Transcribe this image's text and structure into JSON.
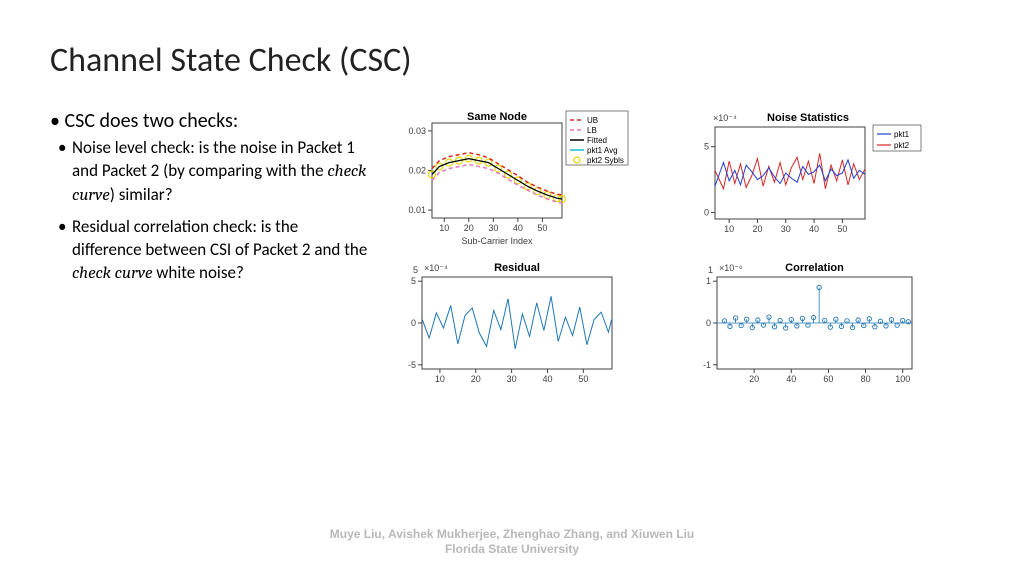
{
  "title": "Channel State Check (CSC)",
  "bullet_main": "CSC does two checks:",
  "bullet_sub1_a": "Noise level check: is the noise in Packet 1 and Packet 2 (by comparing with the ",
  "bullet_sub1_b": "check curve",
  "bullet_sub1_c": ") similar?",
  "bullet_sub2_a": "Residual correlation check: is the difference between CSI of Packet 2 and the ",
  "bullet_sub2_b": "check curve",
  "bullet_sub2_c": " white noise?",
  "footer_line1": "Muye Liu, Avishek Mukherjee, Zhenghao Zhang, and Xiuwen Liu",
  "footer_line2": "Florida State University",
  "colors": {
    "axis": "#404040",
    "ub": "#d62728",
    "lb": "#e377c2",
    "fitted": "#000000",
    "pkt1avg": "#17becf",
    "pkt2sybls": "#e6d800",
    "pkt1": "#1f3fd4",
    "pkt2": "#d62728",
    "residual": "#1f77b4",
    "corr": "#1f77b4"
  },
  "chart1": {
    "title": "Same Node",
    "xlabel": "Sub-Carrier Index",
    "xticks": [
      10,
      20,
      30,
      40,
      50
    ],
    "yticks_labels": [
      "0.01",
      "0.02",
      "0.03"
    ],
    "yticks_vals": [
      0.01,
      0.02,
      0.03
    ],
    "xlim": [
      5,
      58
    ],
    "ylim": [
      0.008,
      0.032
    ],
    "curve_x": [
      5,
      8,
      12,
      16,
      20,
      24,
      28,
      32,
      36,
      40,
      44,
      48,
      52,
      56,
      58
    ],
    "fitted": [
      0.019,
      0.021,
      0.022,
      0.0225,
      0.023,
      0.0225,
      0.022,
      0.0205,
      0.019,
      0.0175,
      0.016,
      0.0148,
      0.0138,
      0.013,
      0.0128
    ],
    "ub": [
      0.0205,
      0.0225,
      0.0235,
      0.024,
      0.0245,
      0.024,
      0.0232,
      0.0217,
      0.0202,
      0.0187,
      0.017,
      0.0158,
      0.0148,
      0.014,
      0.0138
    ],
    "lb": [
      0.0175,
      0.0195,
      0.0205,
      0.021,
      0.0215,
      0.021,
      0.0205,
      0.0193,
      0.0178,
      0.0163,
      0.015,
      0.0138,
      0.0128,
      0.012,
      0.0118
    ],
    "legend": [
      "UB",
      "LB",
      "Fitted",
      "pkt1 Avg",
      "pkt2 Sybls"
    ]
  },
  "chart2": {
    "title": "Noise Statistics",
    "exp": "×10⁻⁴",
    "xticks": [
      10,
      20,
      30,
      40,
      50
    ],
    "yticks": [
      0,
      5
    ],
    "xlim": [
      5,
      58
    ],
    "ylim": [
      -0.5,
      6.5
    ],
    "x": [
      5,
      8,
      10,
      12,
      14,
      16,
      18,
      20,
      22,
      24,
      26,
      28,
      30,
      32,
      34,
      36,
      38,
      40,
      42,
      44,
      46,
      48,
      50,
      52,
      54,
      56,
      58
    ],
    "pkt1": [
      2.0,
      3.8,
      2.4,
      3.2,
      2.1,
      3.6,
      3.1,
      2.5,
      2.8,
      3.4,
      2.7,
      2.2,
      3.0,
      2.6,
      2.3,
      3.5,
      2.9,
      3.1,
      3.6,
      2.4,
      3.3,
      2.8,
      3.0,
      4.0,
      2.6,
      3.2,
      2.9
    ],
    "pkt2": [
      3.2,
      1.8,
      3.9,
      2.2,
      3.7,
      1.9,
      2.8,
      4.1,
      2.0,
      3.5,
      2.3,
      3.8,
      2.1,
      3.4,
      4.2,
      2.5,
      3.9,
      2.2,
      4.5,
      1.8,
      3.6,
      2.4,
      4.0,
      2.1,
      3.7,
      2.5,
      3.3
    ],
    "legend": [
      "pkt1",
      "pkt2"
    ]
  },
  "chart3": {
    "title": "Residual",
    "exp": "×10⁻⁴",
    "xticks": [
      10,
      20,
      30,
      40,
      50
    ],
    "yticks": [
      -5,
      0,
      5
    ],
    "xlim": [
      5,
      58
    ],
    "ylim": [
      -5.5,
      5.5
    ],
    "x": [
      5,
      7,
      9,
      11,
      13,
      15,
      17,
      19,
      21,
      23,
      25,
      27,
      29,
      31,
      33,
      35,
      37,
      39,
      41,
      43,
      45,
      47,
      49,
      51,
      53,
      55,
      57,
      58
    ],
    "y": [
      0.5,
      -1.8,
      1.2,
      -0.6,
      2.1,
      -2.5,
      0.9,
      1.8,
      -1.2,
      -2.8,
      1.5,
      -0.8,
      2.9,
      -3.1,
      1.1,
      -1.6,
      2.4,
      -0.9,
      3.2,
      -2.2,
      0.7,
      -1.5,
      1.9,
      -2.6,
      0.4,
      1.3,
      -1.1,
      0.6
    ]
  },
  "chart4": {
    "title": "Correlation",
    "exp": "×10⁻⁶",
    "xticks": [
      20,
      40,
      60,
      80,
      100
    ],
    "yticks": [
      -1,
      0,
      1
    ],
    "xlim": [
      0,
      105
    ],
    "ylim": [
      -1.1,
      1.1
    ],
    "stem_x": [
      4,
      7,
      10,
      13,
      16,
      19,
      22,
      25,
      28,
      31,
      34,
      37,
      40,
      43,
      46,
      49,
      52,
      55,
      58,
      61,
      64,
      67,
      70,
      73,
      76,
      79,
      82,
      85,
      88,
      91,
      94,
      97,
      100,
      103
    ],
    "stem_y": [
      0.05,
      -0.08,
      0.12,
      -0.06,
      0.09,
      -0.11,
      0.07,
      -0.05,
      0.14,
      -0.09,
      0.06,
      -0.12,
      0.08,
      -0.07,
      0.11,
      -0.05,
      0.13,
      0.85,
      0.06,
      -0.1,
      0.09,
      -0.08,
      0.05,
      -0.11,
      0.07,
      -0.06,
      0.1,
      -0.09,
      0.04,
      -0.07,
      0.08,
      -0.05,
      0.06,
      0.03
    ]
  }
}
